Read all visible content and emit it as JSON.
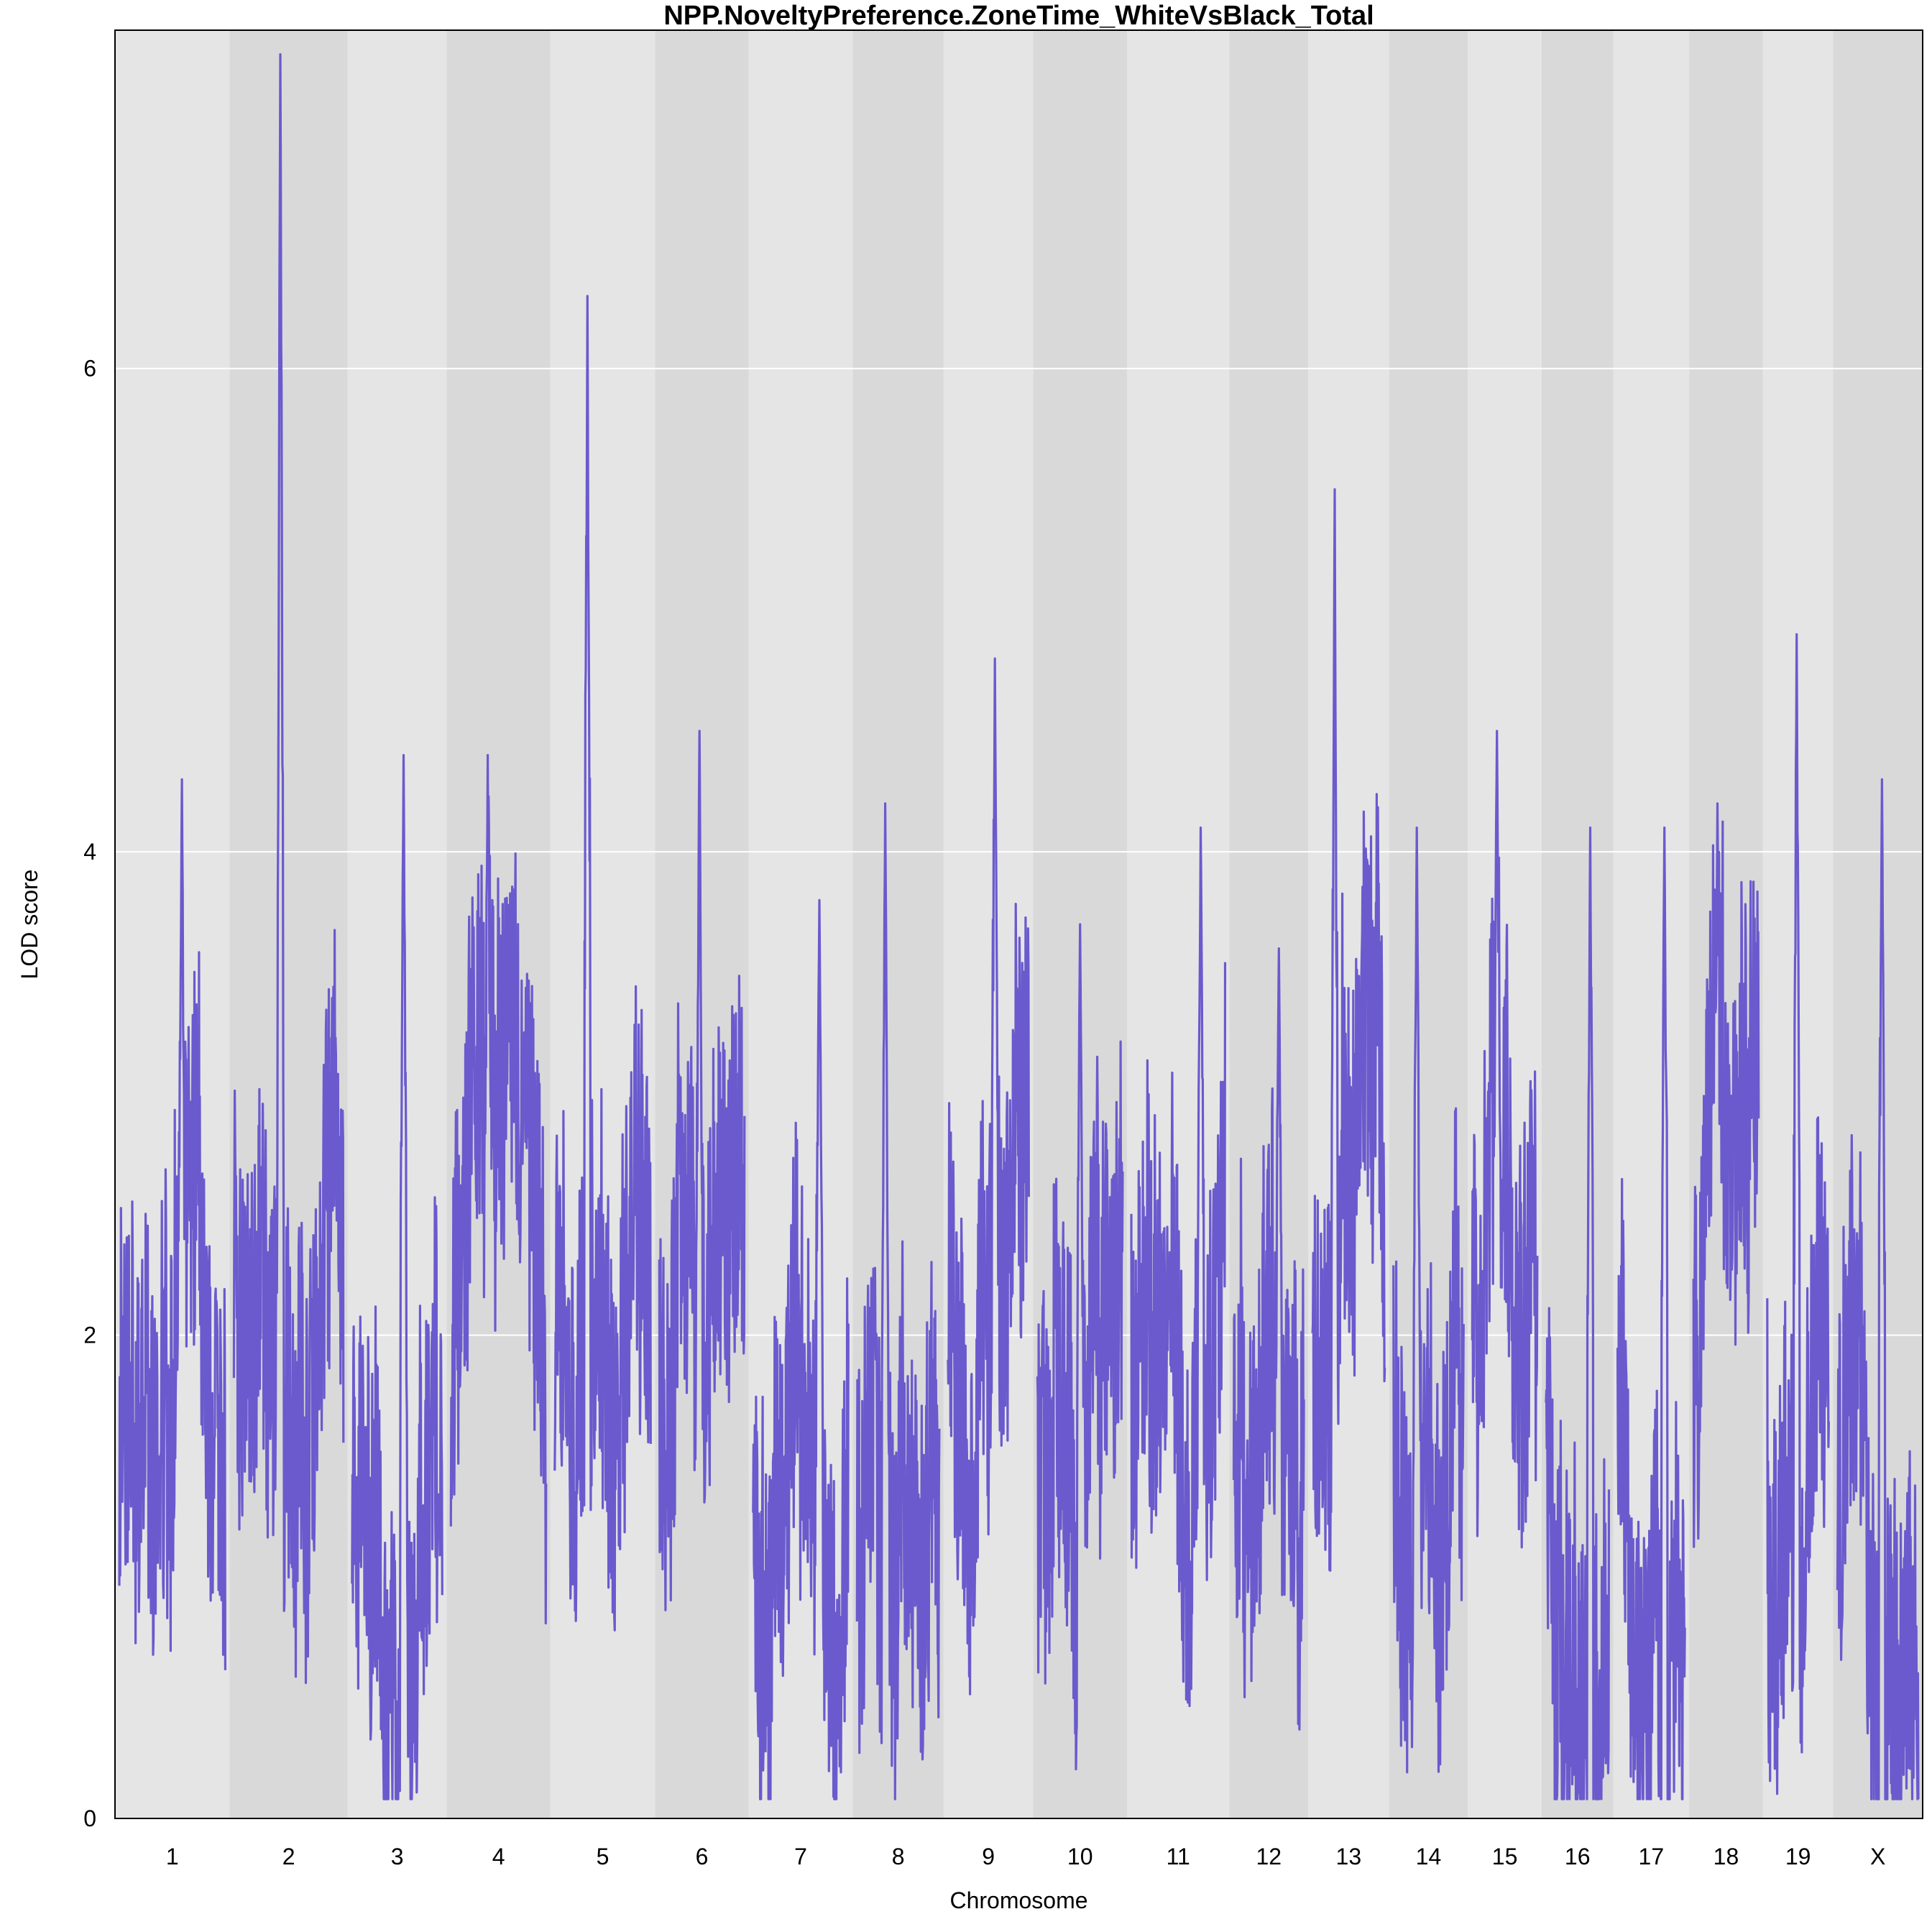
{
  "colors": {
    "band_light": "#e5e5e5",
    "band_dark": "#d9d9d9",
    "line": "#6a5acd",
    "gridline": "#ffffff"
  },
  "chart_data": {
    "type": "line",
    "title": "NPP.NoveltyPreference.ZoneTime_WhiteVsBlack_Total",
    "xlabel": "Chromosome",
    "ylabel": "LOD score",
    "ylim": [
      0,
      7.4
    ],
    "yticks": [
      "0",
      "2",
      "4",
      "6"
    ],
    "grid": "horizontal",
    "legend": "none",
    "chromosomes": [
      {
        "label": "1",
        "peak": 4.3,
        "median": 1.5
      },
      {
        "label": "2",
        "peak": 7.3,
        "median": 2.0
      },
      {
        "label": "3",
        "peak": 4.4,
        "median": 1.4
      },
      {
        "label": "4",
        "peak": 4.4,
        "median": 1.6
      },
      {
        "label": "5",
        "peak": 6.3,
        "median": 2.0
      },
      {
        "label": "6",
        "peak": 4.5,
        "median": 1.7
      },
      {
        "label": "7",
        "peak": 3.8,
        "median": 1.5
      },
      {
        "label": "8",
        "peak": 4.2,
        "median": 1.3
      },
      {
        "label": "9",
        "peak": 4.8,
        "median": 2.0
      },
      {
        "label": "10",
        "peak": 3.7,
        "median": 1.3
      },
      {
        "label": "11",
        "peak": 4.1,
        "median": 1.8
      },
      {
        "label": "12",
        "peak": 3.6,
        "median": 1.3
      },
      {
        "label": "13",
        "peak": 5.5,
        "median": 1.6
      },
      {
        "label": "14",
        "peak": 4.1,
        "median": 1.6
      },
      {
        "label": "15",
        "peak": 4.5,
        "median": 2.0
      },
      {
        "label": "16",
        "peak": 4.1,
        "median": 1.3
      },
      {
        "label": "17",
        "peak": 4.1,
        "median": 1.4
      },
      {
        "label": "18",
        "peak": 4.2,
        "median": 1.7
      },
      {
        "label": "19",
        "peak": 4.9,
        "median": 1.3
      },
      {
        "label": "X",
        "peak": 4.3,
        "median": 1.5
      }
    ]
  }
}
